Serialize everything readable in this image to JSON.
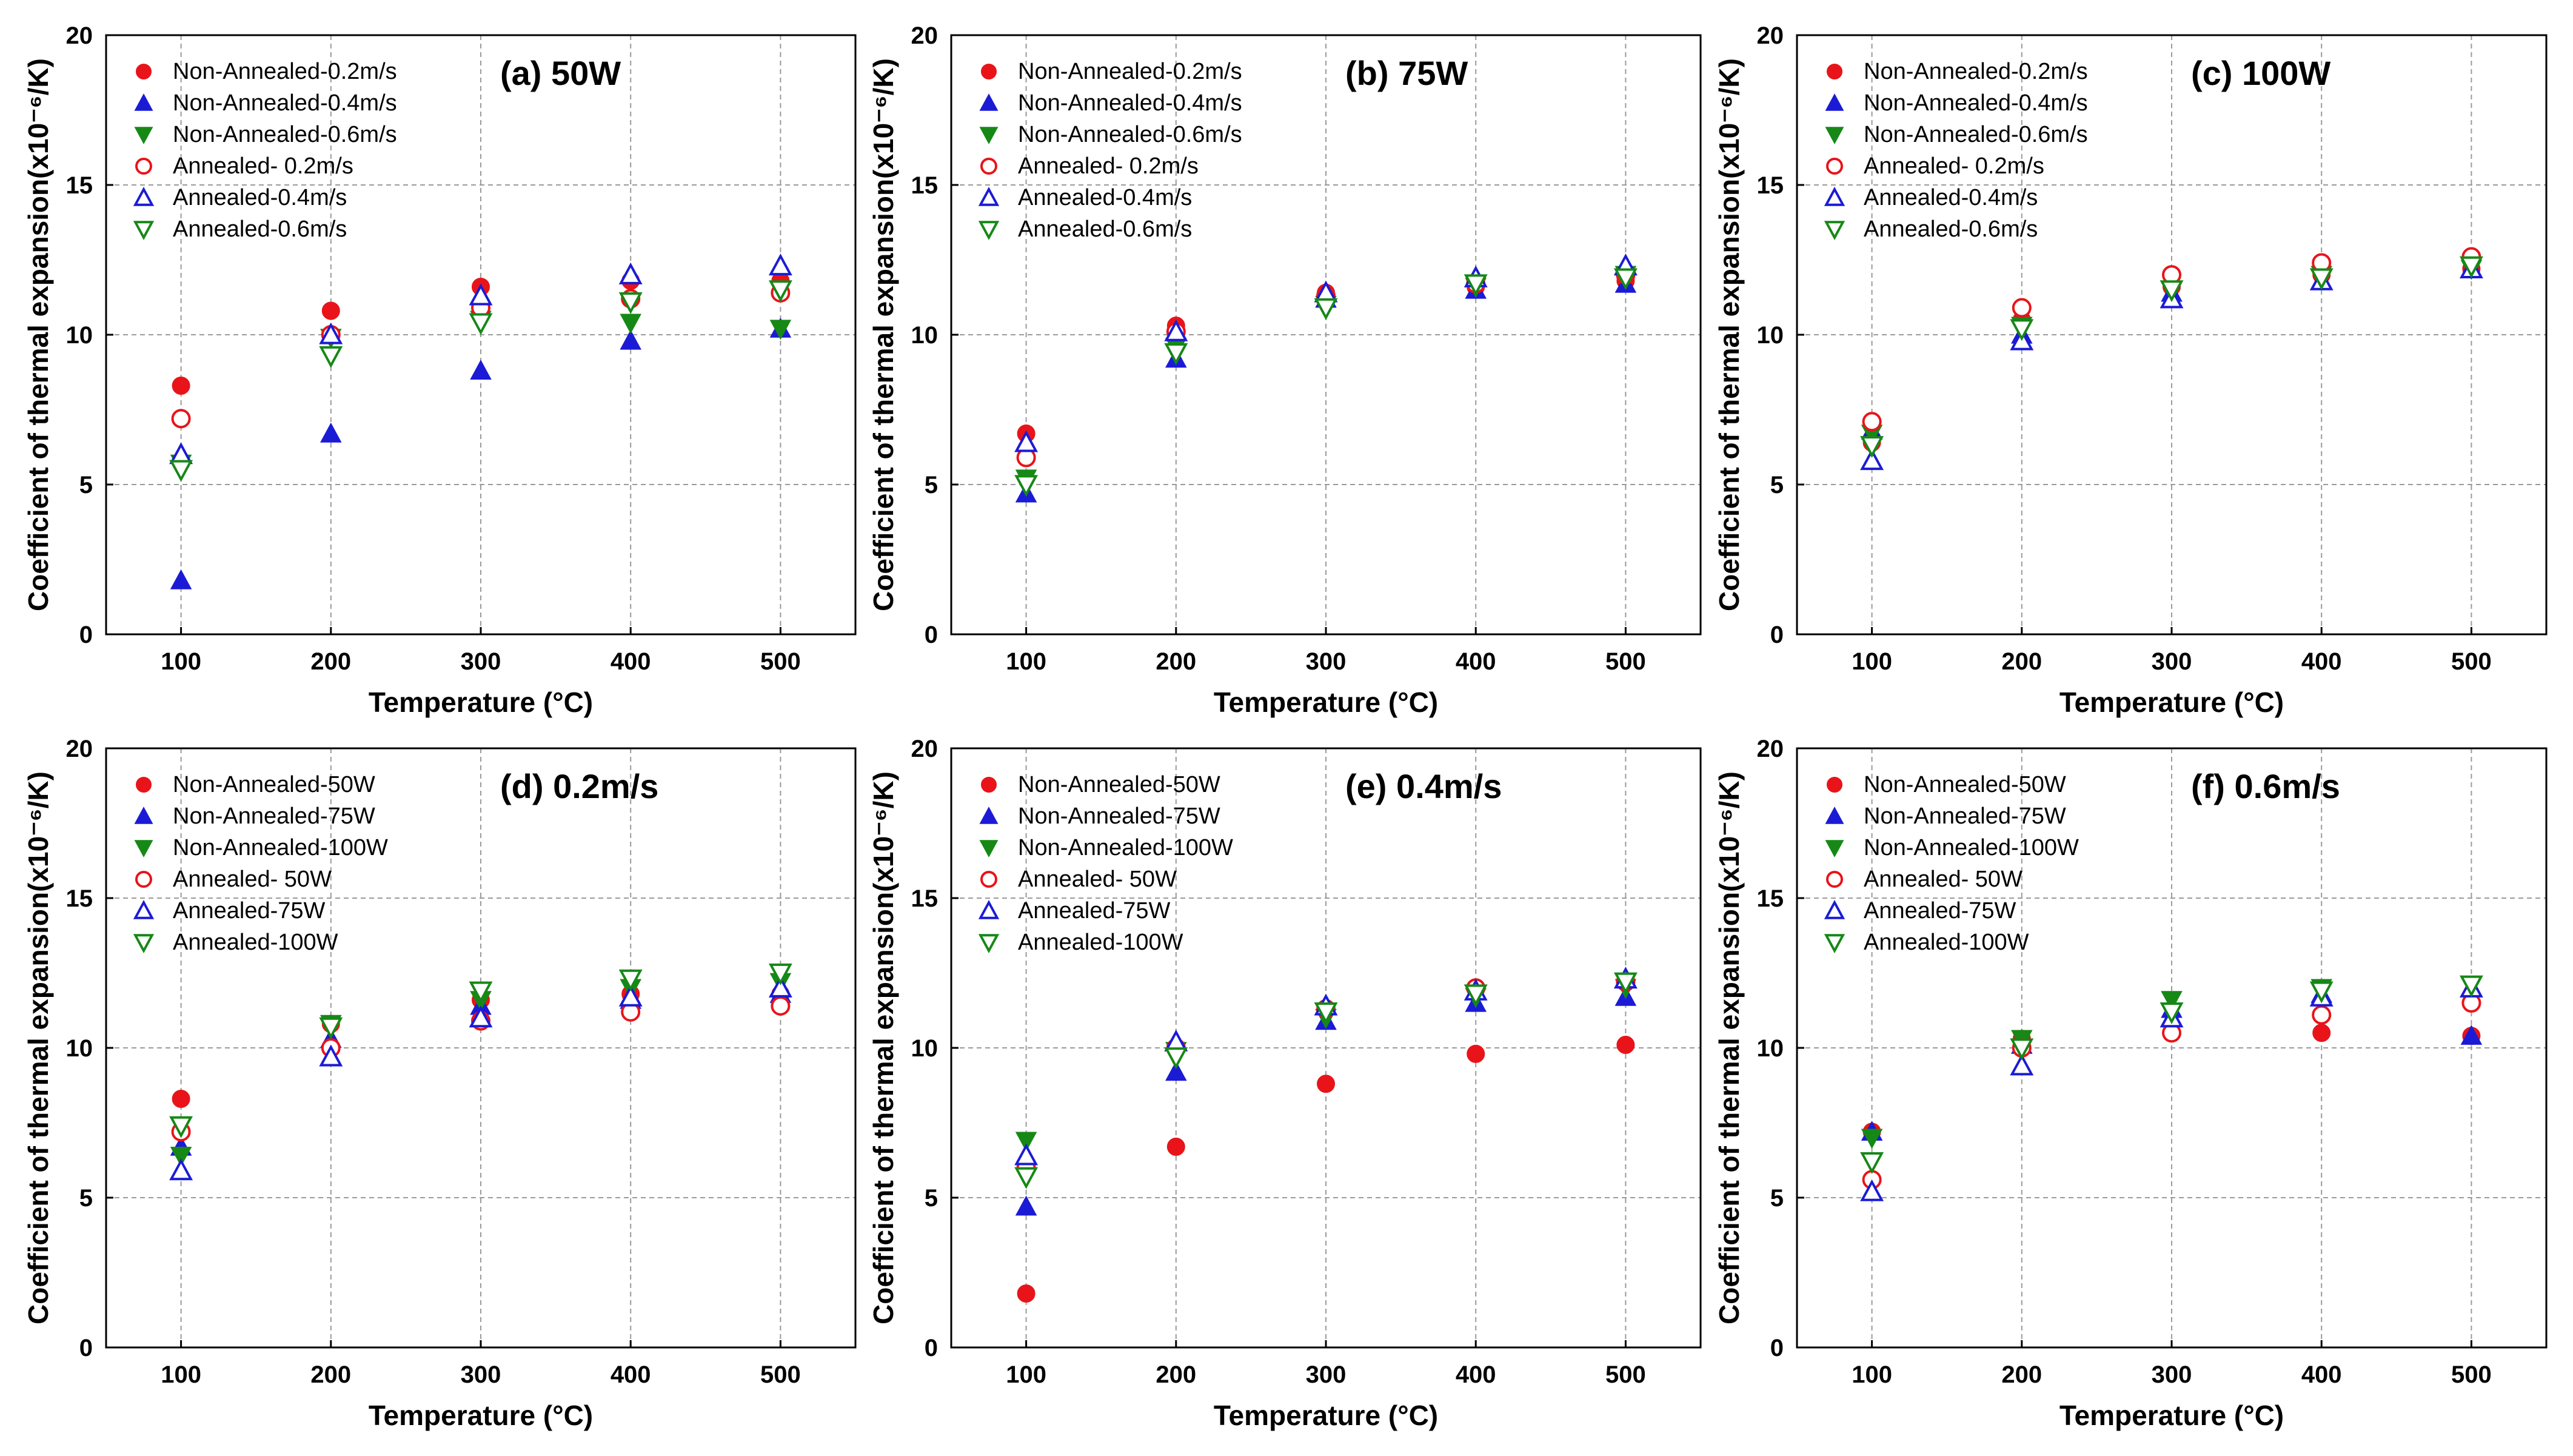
{
  "chart_data": [
    {
      "type": "scatter",
      "title": "(a) 50W",
      "xlabel": "Temperature (°C)",
      "ylabel": "Coefficient of thermal expansion(x10⁻⁶/K)",
      "categories": [
        100,
        200,
        300,
        400,
        500
      ],
      "xticks": [
        "100",
        "200",
        "300",
        "400",
        "500"
      ],
      "yticks": [
        "0",
        "5",
        "10",
        "15",
        "20"
      ],
      "xlim": [
        50,
        550
      ],
      "ylim": [
        0,
        20
      ],
      "series": [
        {
          "name": "Non-Annealed-0.2m/s",
          "color": "#e8141a",
          "marker": "circle",
          "filled": true,
          "values": [
            8.3,
            10.8,
            11.6,
            11.8,
            11.8
          ]
        },
        {
          "name": "Non-Annealed-0.4m/s",
          "color": "#1b1bd6",
          "marker": "triangle-up",
          "filled": true,
          "values": [
            1.8,
            6.7,
            8.8,
            9.8,
            10.2
          ]
        },
        {
          "name": "Non-Annealed-0.6m/s",
          "color": "#168816",
          "marker": "triangle-down",
          "filled": true,
          "values": [
            5.7,
            9.9,
            10.5,
            10.4,
            10.2
          ]
        },
        {
          "name": "Annealed- 0.2m/s",
          "color": "#e8141a",
          "marker": "circle",
          "filled": false,
          "values": [
            7.2,
            10.0,
            10.9,
            11.2,
            11.4
          ]
        },
        {
          "name": "Annealed-0.4m/s",
          "color": "#1b1bd6",
          "marker": "triangle-up",
          "filled": false,
          "values": [
            6.0,
            10.0,
            11.3,
            12.0,
            12.3
          ]
        },
        {
          "name": "Annealed-0.6m/s",
          "color": "#168816",
          "marker": "triangle-down",
          "filled": false,
          "values": [
            5.5,
            9.3,
            10.4,
            11.1,
            11.5
          ]
        }
      ]
    },
    {
      "type": "scatter",
      "title": "(b) 75W",
      "xlabel": "Temperature (°C)",
      "ylabel": "Coefficient of thermal expansion(x10⁻⁶/K)",
      "categories": [
        100,
        200,
        300,
        400,
        500
      ],
      "xticks": [
        "100",
        "200",
        "300",
        "400",
        "500"
      ],
      "yticks": [
        "0",
        "5",
        "10",
        "15",
        "20"
      ],
      "xlim": [
        50,
        550
      ],
      "ylim": [
        0,
        20
      ],
      "series": [
        {
          "name": "Non-Annealed-0.2m/s",
          "color": "#e8141a",
          "marker": "circle",
          "filled": true,
          "values": [
            6.7,
            10.3,
            11.4,
            11.6,
            11.8
          ]
        },
        {
          "name": "Non-Annealed-0.4m/s",
          "color": "#1b1bd6",
          "marker": "triangle-up",
          "filled": true,
          "values": [
            4.7,
            9.2,
            11.2,
            11.5,
            11.7
          ]
        },
        {
          "name": "Non-Annealed-0.6m/s",
          "color": "#168816",
          "marker": "triangle-down",
          "filled": true,
          "values": [
            5.2,
            9.6,
            11.0,
            11.6,
            12.0
          ]
        },
        {
          "name": "Annealed- 0.2m/s",
          "color": "#e8141a",
          "marker": "circle",
          "filled": false,
          "values": [
            5.9,
            10.1,
            11.3,
            11.7,
            12.0
          ]
        },
        {
          "name": "Annealed-0.4m/s",
          "color": "#1b1bd6",
          "marker": "triangle-up",
          "filled": false,
          "values": [
            6.4,
            10.1,
            11.4,
            11.9,
            12.3
          ]
        },
        {
          "name": "Annealed-0.6m/s",
          "color": "#168816",
          "marker": "triangle-down",
          "filled": false,
          "values": [
            5.0,
            9.4,
            10.9,
            11.7,
            11.9
          ]
        }
      ]
    },
    {
      "type": "scatter",
      "title": "(c) 100W",
      "xlabel": "Temperature (°C)",
      "ylabel": "Coefficient of thermal expansion(x10⁻⁶/K)",
      "categories": [
        100,
        200,
        300,
        400,
        500
      ],
      "xticks": [
        "100",
        "200",
        "300",
        "400",
        "500"
      ],
      "yticks": [
        "0",
        "5",
        "10",
        "15",
        "20"
      ],
      "xlim": [
        50,
        550
      ],
      "ylim": [
        0,
        20
      ],
      "series": [
        {
          "name": "Non-Annealed-0.2m/s",
          "color": "#e8141a",
          "marker": "circle",
          "filled": true,
          "values": [
            6.4,
            10.5,
            11.6,
            12.0,
            12.2
          ]
        },
        {
          "name": "Non-Annealed-0.4m/s",
          "color": "#1b1bd6",
          "marker": "triangle-up",
          "filled": true,
          "values": [
            6.8,
            10.0,
            11.4,
            11.8,
            12.2
          ]
        },
        {
          "name": "Non-Annealed-0.6m/s",
          "color": "#168816",
          "marker": "triangle-down",
          "filled": true,
          "values": [
            6.7,
            10.3,
            11.5,
            12.0,
            12.2
          ]
        },
        {
          "name": "Annealed- 0.2m/s",
          "color": "#e8141a",
          "marker": "circle",
          "filled": false,
          "values": [
            7.1,
            10.9,
            12.0,
            12.4,
            12.6
          ]
        },
        {
          "name": "Annealed-0.4m/s",
          "color": "#1b1bd6",
          "marker": "triangle-up",
          "filled": false,
          "values": [
            5.8,
            9.8,
            11.2,
            11.8,
            12.2
          ]
        },
        {
          "name": "Annealed-0.6m/s",
          "color": "#168816",
          "marker": "triangle-down",
          "filled": false,
          "values": [
            6.3,
            10.2,
            11.5,
            11.9,
            12.3
          ]
        }
      ]
    },
    {
      "type": "scatter",
      "title": "(d) 0.2m/s",
      "xlabel": "Temperature (°C)",
      "ylabel": "Coefficient of thermal expansion(x10⁻⁶/K)",
      "categories": [
        100,
        200,
        300,
        400,
        500
      ],
      "xticks": [
        "100",
        "200",
        "300",
        "400",
        "500"
      ],
      "yticks": [
        "0",
        "5",
        "10",
        "15",
        "20"
      ],
      "xlim": [
        50,
        550
      ],
      "ylim": [
        0,
        20
      ],
      "series": [
        {
          "name": "Non-Annealed-50W",
          "color": "#e8141a",
          "marker": "circle",
          "filled": true,
          "values": [
            8.3,
            10.8,
            11.6,
            11.8,
            11.8
          ]
        },
        {
          "name": "Non-Annealed-75W",
          "color": "#1b1bd6",
          "marker": "triangle-up",
          "filled": true,
          "values": [
            6.7,
            10.3,
            11.4,
            11.6,
            11.8
          ]
        },
        {
          "name": "Non-Annealed-100W",
          "color": "#168816",
          "marker": "triangle-down",
          "filled": true,
          "values": [
            6.4,
            10.8,
            11.6,
            12.0,
            12.2
          ]
        },
        {
          "name": "Annealed- 50W",
          "color": "#e8141a",
          "marker": "circle",
          "filled": false,
          "values": [
            7.2,
            10.0,
            10.9,
            11.2,
            11.4
          ]
        },
        {
          "name": "Annealed-75W",
          "color": "#1b1bd6",
          "marker": "triangle-up",
          "filled": false,
          "values": [
            5.9,
            9.7,
            11.0,
            11.7,
            12.0
          ]
        },
        {
          "name": "Annealed-100W",
          "color": "#168816",
          "marker": "triangle-down",
          "filled": false,
          "values": [
            7.4,
            10.7,
            11.9,
            12.3,
            12.5
          ]
        }
      ]
    },
    {
      "type": "scatter",
      "title": "(e) 0.4m/s",
      "xlabel": "Temperature (°C)",
      "ylabel": "Coefficient of thermal expansion(x10⁻⁶/K)",
      "categories": [
        100,
        200,
        300,
        400,
        500
      ],
      "xticks": [
        "100",
        "200",
        "300",
        "400",
        "500"
      ],
      "yticks": [
        "0",
        "5",
        "10",
        "15",
        "20"
      ],
      "xlim": [
        50,
        550
      ],
      "ylim": [
        0,
        20
      ],
      "series": [
        {
          "name": "Non-Annealed-50W",
          "color": "#e8141a",
          "marker": "circle",
          "filled": true,
          "values": [
            1.8,
            6.7,
            8.8,
            9.8,
            10.1
          ]
        },
        {
          "name": "Non-Annealed-75W",
          "color": "#1b1bd6",
          "marker": "triangle-up",
          "filled": true,
          "values": [
            4.7,
            9.2,
            10.9,
            11.5,
            11.7
          ]
        },
        {
          "name": "Non-Annealed-100W",
          "color": "#168816",
          "marker": "triangle-down",
          "filled": true,
          "values": [
            6.9,
            9.9,
            11.0,
            11.7,
            12.0
          ]
        },
        {
          "name": "Annealed- 50W",
          "color": "#e8141a",
          "marker": "circle",
          "filled": false,
          "values": [
            6.0,
            10.0,
            11.3,
            12.0,
            12.2
          ]
        },
        {
          "name": "Annealed-75W",
          "color": "#1b1bd6",
          "marker": "triangle-up",
          "filled": false,
          "values": [
            6.4,
            10.2,
            11.4,
            11.9,
            12.3
          ]
        },
        {
          "name": "Annealed-100W",
          "color": "#168816",
          "marker": "triangle-down",
          "filled": false,
          "values": [
            5.7,
            9.7,
            11.2,
            11.8,
            12.2
          ]
        }
      ]
    },
    {
      "type": "scatter",
      "title": "(f) 0.6m/s",
      "xlabel": "Temperature (°C)",
      "ylabel": "Coefficient of thermal expansion(x10⁻⁶/K)",
      "categories": [
        100,
        200,
        300,
        400,
        500
      ],
      "xticks": [
        "100",
        "200",
        "300",
        "400",
        "500"
      ],
      "yticks": [
        "0",
        "5",
        "10",
        "15",
        "20"
      ],
      "xlim": [
        50,
        550
      ],
      "ylim": [
        0,
        20
      ],
      "series": [
        {
          "name": "Non-Annealed-50W",
          "color": "#e8141a",
          "marker": "circle",
          "filled": true,
          "values": [
            7.2,
            10.3,
            10.5,
            10.5,
            10.4
          ]
        },
        {
          "name": "Non-Annealed-75W",
          "color": "#1b1bd6",
          "marker": "triangle-up",
          "filled": true,
          "values": [
            7.2,
            10.1,
            11.3,
            11.8,
            10.4
          ]
        },
        {
          "name": "Non-Annealed-100W",
          "color": "#168816",
          "marker": "triangle-down",
          "filled": true,
          "values": [
            7.0,
            10.3,
            11.6,
            12.0,
            12.1
          ]
        },
        {
          "name": "Annealed- 50W",
          "color": "#e8141a",
          "marker": "circle",
          "filled": false,
          "values": [
            5.6,
            10.0,
            10.5,
            11.1,
            11.5
          ]
        },
        {
          "name": "Annealed-75W",
          "color": "#1b1bd6",
          "marker": "triangle-up",
          "filled": false,
          "values": [
            5.2,
            9.4,
            11.0,
            11.7,
            12.0
          ]
        },
        {
          "name": "Annealed-100W",
          "color": "#168816",
          "marker": "triangle-down",
          "filled": false,
          "values": [
            6.2,
            10.0,
            11.2,
            11.9,
            12.1
          ]
        }
      ]
    }
  ]
}
